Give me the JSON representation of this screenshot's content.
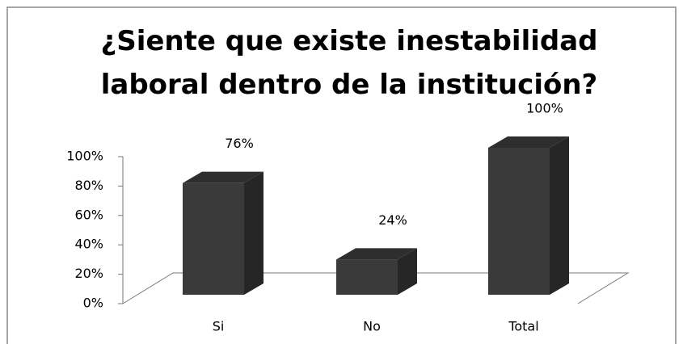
{
  "chart_data": {
    "type": "bar3d",
    "title": [
      "¿Siente que existe inestabilidad",
      "laboral dentro de la institución?"
    ],
    "categories": [
      "Si",
      "No",
      "Total"
    ],
    "values": [
      76,
      24,
      100
    ],
    "value_labels": [
      "76%",
      "24%",
      "100%"
    ],
    "color": "#3a3a3a",
    "ylim": [
      0,
      100
    ],
    "yticks": [
      {
        "value": 0,
        "label": "0%"
      },
      {
        "value": 20,
        "label": "20%"
      },
      {
        "value": 40,
        "label": "40%"
      },
      {
        "value": 60,
        "label": "60%"
      },
      {
        "value": 80,
        "label": "80%"
      },
      {
        "value": 100,
        "label": "100%"
      }
    ]
  }
}
